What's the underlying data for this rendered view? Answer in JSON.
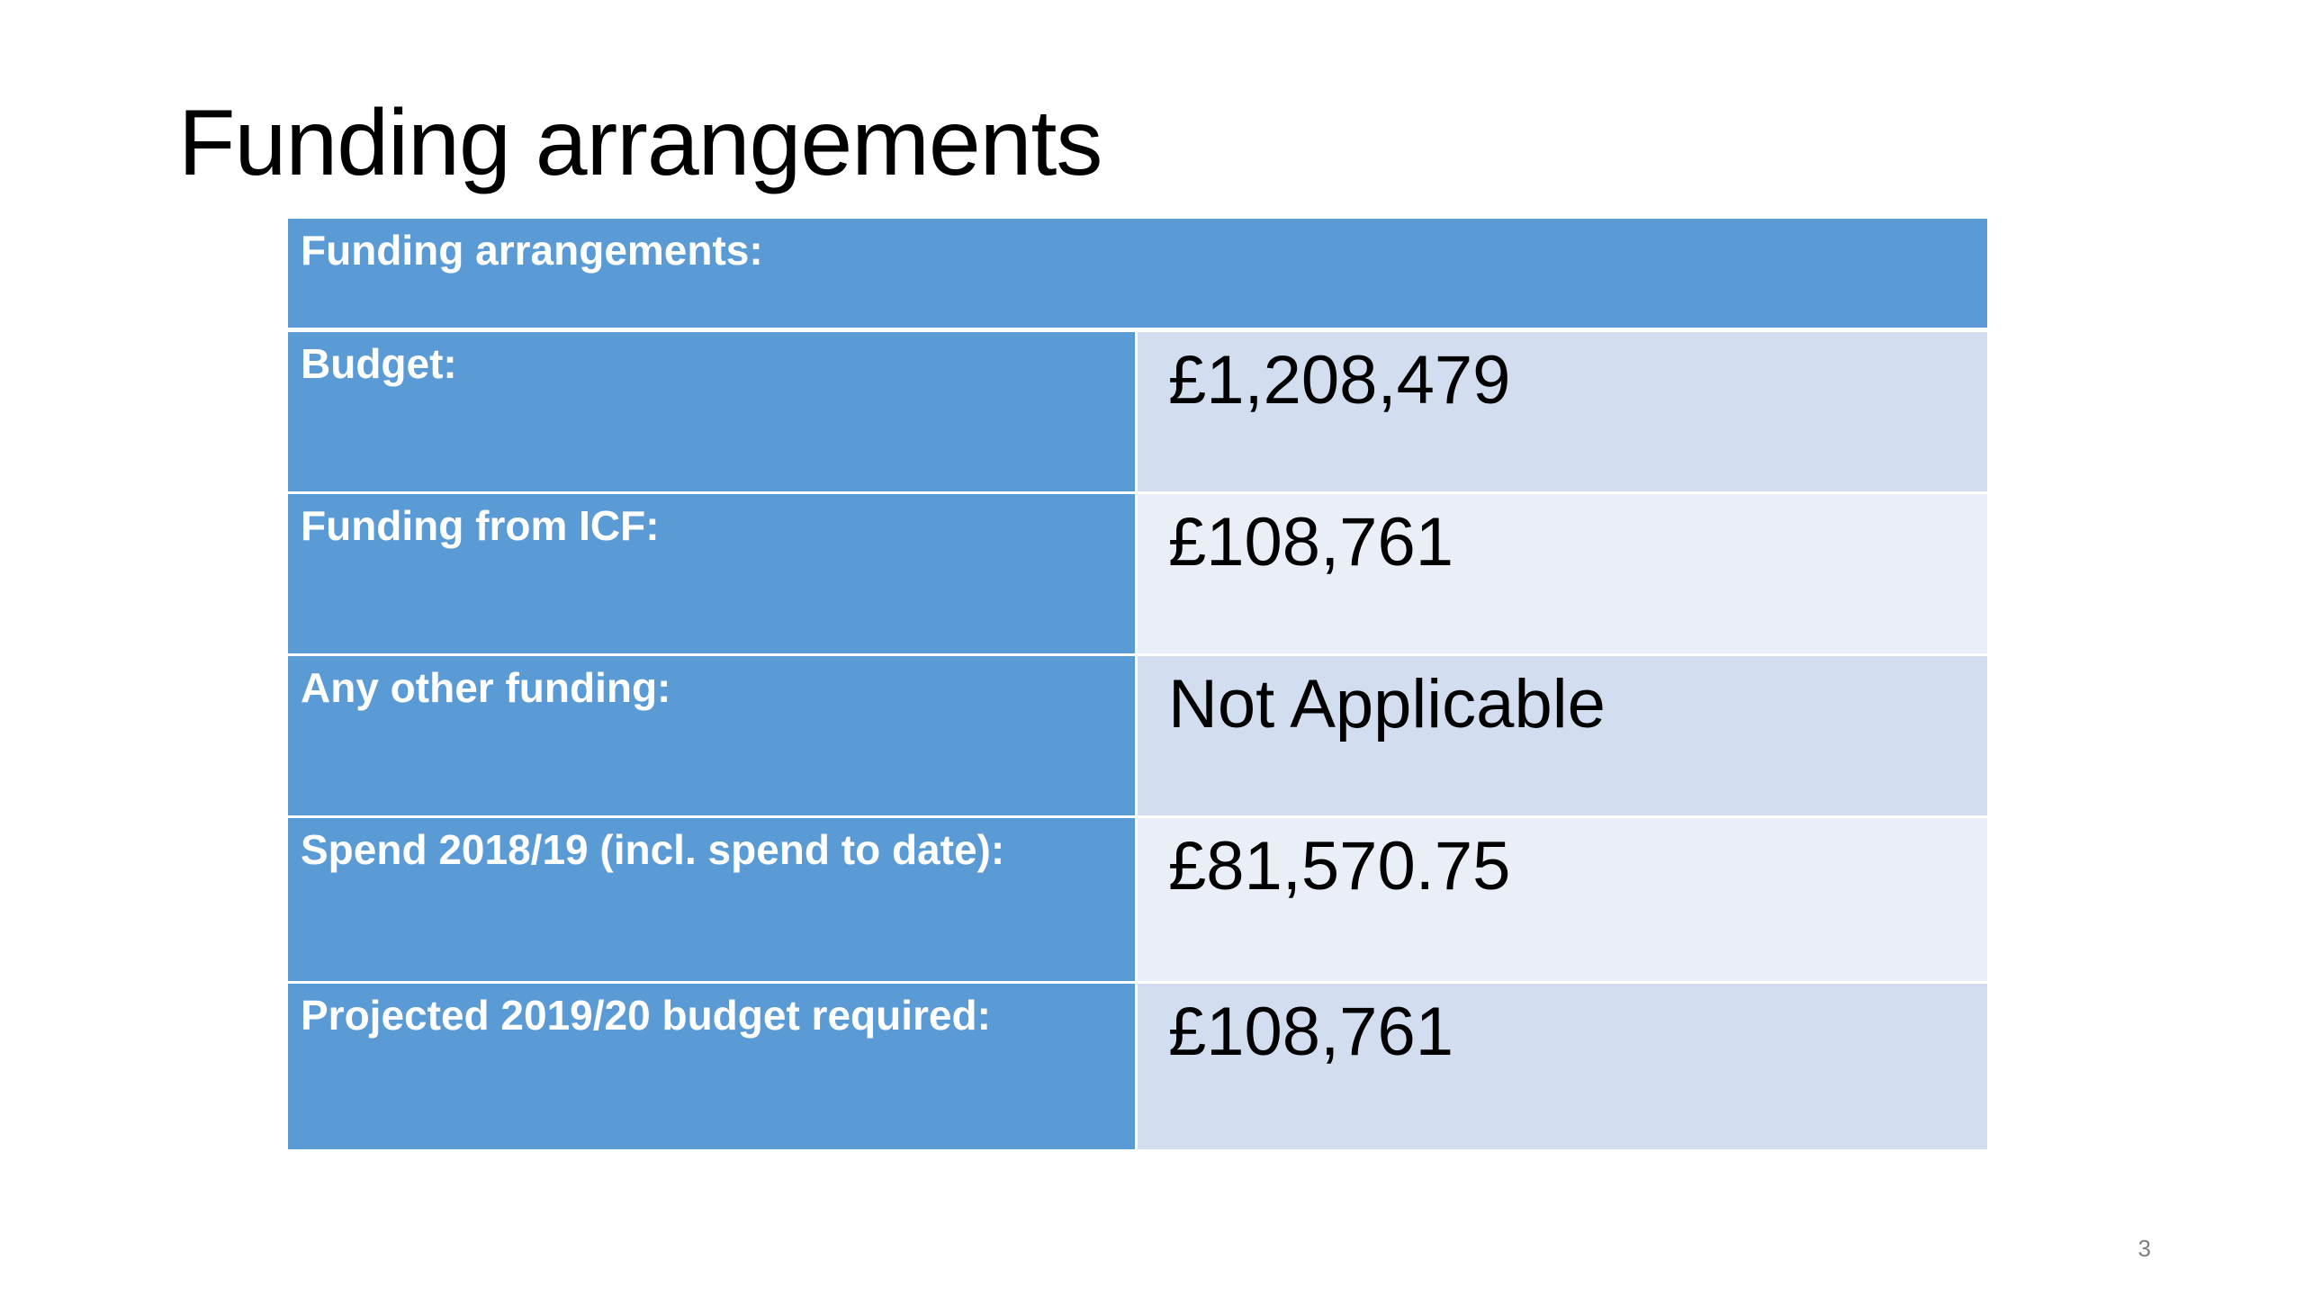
{
  "slide": {
    "title": "Funding arrangements",
    "page_number": "3"
  },
  "table": {
    "header": "Funding arrangements:",
    "rows": [
      {
        "label": "Budget:",
        "value": "£1,208,479"
      },
      {
        "label": "Funding from ICF:",
        "value": "£108,761"
      },
      {
        "label": "Any other funding:",
        "value": "Not Applicable"
      },
      {
        "label": "Spend 2018/19 (incl. spend to date):",
        "value": "£81,570.75"
      },
      {
        "label": "Projected 2019/20 budget required:",
        "value": "£108,761"
      }
    ]
  },
  "colors": {
    "header_fill": "#5b9bd5",
    "band_dark": "#d2deef",
    "band_light": "#eaeff7"
  }
}
